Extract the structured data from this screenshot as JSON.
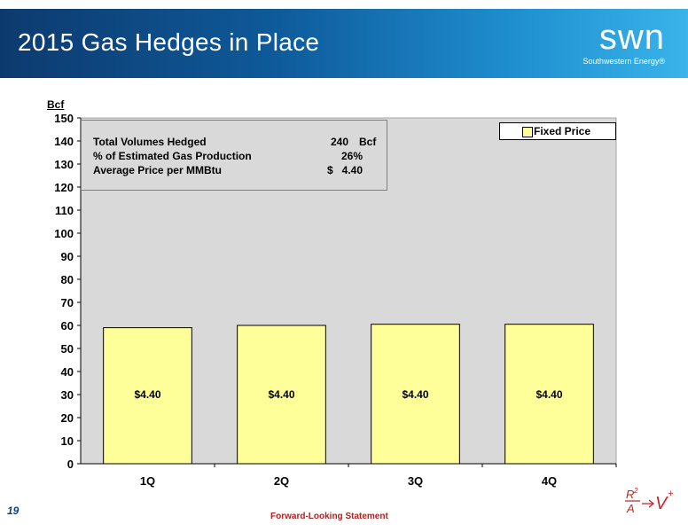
{
  "header": {
    "title": "2015 Gas Hedges in Place"
  },
  "logo": {
    "mark": "swn",
    "subtitle": "Southwestern Energy®"
  },
  "summary": {
    "rows": [
      {
        "label": "Total Volumes Hedged",
        "value": "240",
        "unit": "Bcf",
        "currency": ""
      },
      {
        "label": "% of Estimated Gas Production",
        "value": "26%",
        "unit": "",
        "currency": ""
      },
      {
        "label": "Average Price per MMBtu",
        "value": "4.40",
        "unit": "",
        "currency": "$"
      }
    ]
  },
  "footer": {
    "slide_number": "19",
    "link": "Forward-Looking Statement",
    "formula": {
      "num": "R",
      "num_sup": "2",
      "den": "A",
      "result": "V",
      "result_sup": "+"
    }
  },
  "colors": {
    "bar_fill": "#ffff99",
    "plot_bg": "#d9d9d9",
    "header_dark": "#0d3a6e",
    "header_light": "#39b3ea"
  },
  "chart_data": {
    "type": "bar",
    "title": "",
    "ylabel": "Bcf",
    "xlabel": "",
    "ylim": [
      0,
      150
    ],
    "yticks": [
      0,
      10,
      20,
      30,
      40,
      50,
      60,
      70,
      80,
      90,
      100,
      110,
      120,
      130,
      140,
      150
    ],
    "grid": false,
    "legend_position": "top-right",
    "categories": [
      "1Q",
      "2Q",
      "3Q",
      "4Q"
    ],
    "series": [
      {
        "name": "Fixed Price",
        "values": [
          59,
          60,
          60.5,
          60.5
        ],
        "labels": [
          "$4.40",
          "$4.40",
          "$4.40",
          "$4.40"
        ]
      }
    ]
  }
}
